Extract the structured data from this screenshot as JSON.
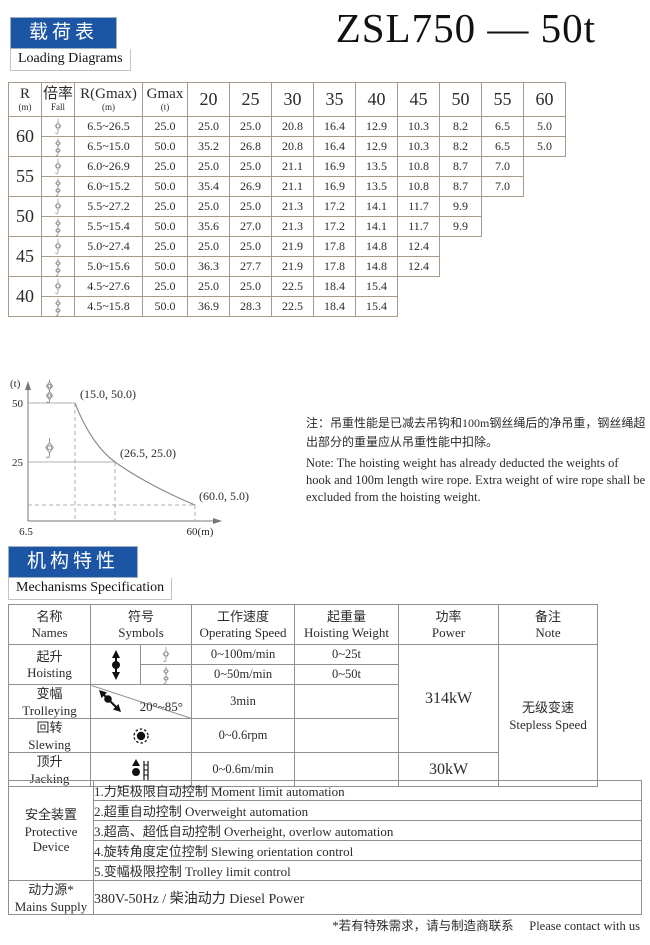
{
  "page": {
    "title": "ZSL750 — 50t",
    "footnote": "*若有特殊需求，请与制造商联系　 Please contact with us"
  },
  "colors": {
    "accent_blue": "#1c55a4",
    "load_table_border": "#a89a8b",
    "spec_table_border": "#8f8f8f"
  },
  "badges": {
    "loading": {
      "zh": "载荷表",
      "en": "Loading Diagrams"
    },
    "mechanisms": {
      "zh": "机构特性",
      "en": "Mechanisms Specification"
    }
  },
  "load_table": {
    "headers": [
      {
        "main": "R",
        "sub": "(m)"
      },
      {
        "main": "倍率",
        "sub": "Fall"
      },
      {
        "main": "R(Gmax)",
        "sub": "(m)"
      },
      {
        "main": "Gmax",
        "sub": "(t)"
      }
    ],
    "radius_cols": [
      "20",
      "25",
      "30",
      "35",
      "40",
      "45",
      "50",
      "55",
      "60"
    ],
    "groups": [
      {
        "r": "60",
        "rows": [
          {
            "fall": "fall-2",
            "r_gmax": "6.5~26.5",
            "gmax": "25.0",
            "values": [
              "25.0",
              "25.0",
              "20.8",
              "16.4",
              "12.9",
              "10.3",
              "8.2",
              "6.5",
              "5.0"
            ]
          },
          {
            "fall": "fall-4",
            "r_gmax": "6.5~15.0",
            "gmax": "50.0",
            "values": [
              "35.2",
              "26.8",
              "20.8",
              "16.4",
              "12.9",
              "10.3",
              "8.2",
              "6.5",
              "5.0"
            ]
          }
        ]
      },
      {
        "r": "55",
        "rows": [
          {
            "fall": "fall-2",
            "r_gmax": "6.0~26.9",
            "gmax": "25.0",
            "values": [
              "25.0",
              "25.0",
              "21.1",
              "16.9",
              "13.5",
              "10.8",
              "8.7",
              "7.0"
            ]
          },
          {
            "fall": "fall-4",
            "r_gmax": "6.0~15.2",
            "gmax": "50.0",
            "values": [
              "35.4",
              "26.9",
              "21.1",
              "16.9",
              "13.5",
              "10.8",
              "8.7",
              "7.0"
            ]
          }
        ]
      },
      {
        "r": "50",
        "rows": [
          {
            "fall": "fall-2",
            "r_gmax": "5.5~27.2",
            "gmax": "25.0",
            "values": [
              "25.0",
              "25.0",
              "21.3",
              "17.2",
              "14.1",
              "11.7",
              "9.9"
            ]
          },
          {
            "fall": "fall-4",
            "r_gmax": "5.5~15.4",
            "gmax": "50.0",
            "values": [
              "35.6",
              "27.0",
              "21.3",
              "17.2",
              "14.1",
              "11.7",
              "9.9"
            ]
          }
        ]
      },
      {
        "r": "45",
        "rows": [
          {
            "fall": "fall-2",
            "r_gmax": "5.0~27.4",
            "gmax": "25.0",
            "values": [
              "25.0",
              "25.0",
              "21.9",
              "17.8",
              "14.8",
              "12.4"
            ]
          },
          {
            "fall": "fall-4",
            "r_gmax": "5.0~15.6",
            "gmax": "50.0",
            "values": [
              "36.3",
              "27.7",
              "21.9",
              "17.8",
              "14.8",
              "12.4"
            ]
          }
        ]
      },
      {
        "r": "40",
        "rows": [
          {
            "fall": "fall-2",
            "r_gmax": "4.5~27.6",
            "gmax": "25.0",
            "values": [
              "25.0",
              "25.0",
              "22.5",
              "18.4",
              "15.4"
            ]
          },
          {
            "fall": "fall-4",
            "r_gmax": "4.5~15.8",
            "gmax": "50.0",
            "values": [
              "36.9",
              "28.3",
              "22.5",
              "18.4",
              "15.4"
            ]
          }
        ]
      }
    ]
  },
  "chart_data": {
    "type": "line",
    "title": "",
    "ylabel": "(t)",
    "xlabel": "(m)",
    "yticks": [
      "50",
      "25"
    ],
    "x_origin_label": "6.5",
    "x_end_label": "60(m)",
    "xlim": [
      6.5,
      60
    ],
    "ylim": [
      0,
      55
    ],
    "grid": false,
    "series": [
      {
        "name": "load-curve",
        "points": [
          [
            15.0,
            50.0
          ],
          [
            26.5,
            25.0
          ],
          [
            60.0,
            5.0
          ]
        ]
      }
    ],
    "annotations": [
      "(15.0, 50.0)",
      "(26.5, 25.0)",
      "(60.0, 5.0)"
    ],
    "marker_icons": [
      {
        "icon": "fall-4",
        "at_level": 50
      },
      {
        "icon": "fall-2",
        "at_level": 25
      }
    ]
  },
  "note": {
    "zh": "注：吊重性能是已减去吊钩和100m钢丝绳后的净吊重，钢丝绳超出部分的重量应从吊重性能中扣除。",
    "en": "Note: The hoisting weight has already deducted the weights of hook and 100m length wire rope. Extra weight of wire rope shall be excluded from the hoisting weight."
  },
  "spec": {
    "headers": [
      {
        "zh": "名称",
        "en": "Names"
      },
      {
        "zh": "符号",
        "en": "Symbols"
      },
      {
        "zh": "工作速度",
        "en": "Operating Speed"
      },
      {
        "zh": "起重量",
        "en": "Hoisting Weight"
      },
      {
        "zh": "功率",
        "en": "Power"
      },
      {
        "zh": "备注",
        "en": "Note"
      }
    ],
    "hoisting": {
      "zh": "起升",
      "en": "Hoisting",
      "speed_2fall": "0~100m/min",
      "speed_4fall": "0~50m/min",
      "weight_2fall": "0~25t",
      "weight_4fall": "0~50t"
    },
    "trolleying": {
      "zh": "变幅",
      "en": "Trolleying",
      "angle": "20°~85°",
      "speed": "3min"
    },
    "slewing": {
      "zh": "回转",
      "en": "Slewing",
      "speed": "0~0.6rpm"
    },
    "jacking": {
      "zh": "顶升",
      "en": "Jacking",
      "speed": "0~0.6m/min",
      "power": "30kW"
    },
    "power_main": "314kW",
    "note": {
      "zh": "无级变速",
      "en": "Stepless Speed"
    }
  },
  "protective": {
    "label_zh": "安全装置",
    "label_en1": "Protective",
    "label_en2": "Device",
    "items": [
      "1.力矩极限自动控制  Moment limit automation",
      "2.超重自动控制  Overweight automation",
      "3.超高、超低自动控制  Overheight, overlow automation",
      "4.旋转角度定位控制  Slewing orientation control",
      "5.变幅极限控制  Trolley limit control"
    ]
  },
  "mains": {
    "label_zh": "动力源*",
    "label_en": "Mains Supply",
    "value": "380V-50Hz / 柴油动力  Diesel Power"
  }
}
